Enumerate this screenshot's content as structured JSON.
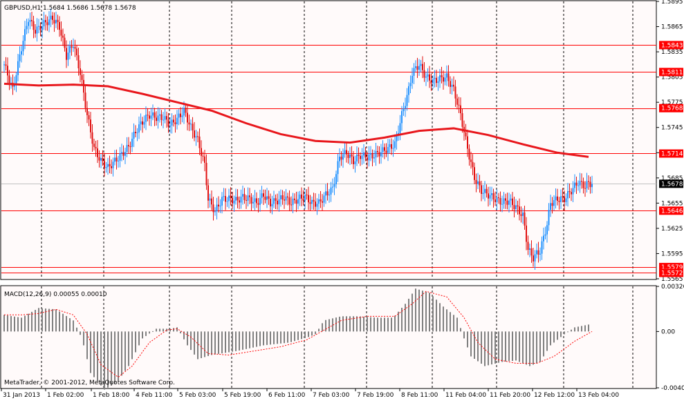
{
  "symbol_header": "GBPUSD,H1  1.5684 1.5686 1.5678 1.5678",
  "macd_header": "MACD(12,26,9) 0.00055 0.00010",
  "copyright": "MetaTrader, © 2001-2012, MetaQuotes Software Corp.",
  "colors": {
    "background": "#fffafa",
    "bull": "#1e90ff",
    "bear": "#e01010",
    "hline": "#ff0000",
    "ma": "#e8171c",
    "macd_hist": "#808080",
    "signal": "#ff0000",
    "grid": "#000000",
    "label_box": "#ff0000",
    "current_box": "#000000"
  },
  "chart_data": [
    {
      "type": "candlestick",
      "title": "GBPUSD,H1",
      "ylim": [
        1.5565,
        1.5895
      ],
      "y_ticks": [
        "1.5895",
        "1.5865",
        "1.5835",
        "1.5805",
        "1.5775",
        "1.5745",
        "1.5715",
        "1.5685",
        "1.5655",
        "1.5625",
        "1.5595",
        "1.5565"
      ],
      "x_ticks": [
        "31 Jan 2013",
        "1 Feb 02:00",
        "1 Feb 18:00",
        "4 Feb 11:00",
        "5 Feb 03:00",
        "5 Feb 19:00",
        "6 Feb 11:00",
        "7 Feb 03:00",
        "7 Feb 19:00",
        "8 Feb 11:00",
        "11 Feb 04:00",
        "11 Feb 20:00",
        "12 Feb 12:00",
        "13 Feb 04:00"
      ],
      "horizontal_levels": [
        "1.5843",
        "1.5811",
        "1.5768",
        "1.5714",
        "1.5646",
        "1.5579",
        "1.5572"
      ],
      "current_price": "1.5678",
      "moving_average_path": [
        [
          0,
          1.5797
        ],
        [
          20,
          1.5795
        ],
        [
          40,
          1.5796
        ],
        [
          60,
          1.5794
        ],
        [
          80,
          1.5785
        ],
        [
          100,
          1.5775
        ],
        [
          120,
          1.5765
        ],
        [
          140,
          1.575
        ],
        [
          160,
          1.5737
        ],
        [
          180,
          1.5729
        ],
        [
          200,
          1.5727
        ],
        [
          220,
          1.5733
        ],
        [
          240,
          1.5741
        ],
        [
          260,
          1.5744
        ],
        [
          280,
          1.5736
        ],
        [
          300,
          1.5725
        ],
        [
          320,
          1.5715
        ],
        [
          338,
          1.571
        ]
      ],
      "price_path": [
        [
          0,
          1.582
        ],
        [
          5,
          1.579
        ],
        [
          10,
          1.584
        ],
        [
          14,
          1.5875
        ],
        [
          18,
          1.586
        ],
        [
          24,
          1.587
        ],
        [
          28,
          1.5875
        ],
        [
          32,
          1.5865
        ],
        [
          36,
          1.583
        ],
        [
          40,
          1.5845
        ],
        [
          44,
          1.581
        ],
        [
          48,
          1.576
        ],
        [
          52,
          1.572
        ],
        [
          56,
          1.5705
        ],
        [
          60,
          1.5697
        ],
        [
          64,
          1.5705
        ],
        [
          68,
          1.5713
        ],
        [
          72,
          1.5722
        ],
        [
          76,
          1.574
        ],
        [
          80,
          1.5752
        ],
        [
          84,
          1.576
        ],
        [
          88,
          1.5757
        ],
        [
          92,
          1.5757
        ],
        [
          96,
          1.5748
        ],
        [
          100,
          1.5755
        ],
        [
          104,
          1.5765
        ],
        [
          108,
          1.5745
        ],
        [
          112,
          1.573
        ],
        [
          116,
          1.57
        ],
        [
          118,
          1.566
        ],
        [
          122,
          1.5645
        ],
        [
          126,
          1.566
        ],
        [
          130,
          1.566
        ],
        [
          134,
          1.5658
        ],
        [
          138,
          1.5662
        ],
        [
          142,
          1.566
        ],
        [
          146,
          1.5655
        ],
        [
          150,
          1.5665
        ],
        [
          154,
          1.5655
        ],
        [
          158,
          1.5658
        ],
        [
          162,
          1.5662
        ],
        [
          166,
          1.5655
        ],
        [
          170,
          1.566
        ],
        [
          174,
          1.5663
        ],
        [
          178,
          1.5655
        ],
        [
          182,
          1.5655
        ],
        [
          186,
          1.5665
        ],
        [
          190,
          1.5672
        ],
        [
          194,
          1.571
        ],
        [
          198,
          1.5715
        ],
        [
          202,
          1.5705
        ],
        [
          206,
          1.5712
        ],
        [
          210,
          1.571
        ],
        [
          214,
          1.5712
        ],
        [
          218,
          1.5716
        ],
        [
          222,
          1.572
        ],
        [
          226,
          1.5725
        ],
        [
          230,
          1.576
        ],
        [
          234,
          1.579
        ],
        [
          236,
          1.581
        ],
        [
          240,
          1.582
        ],
        [
          244,
          1.5805
        ],
        [
          248,
          1.58
        ],
        [
          252,
          1.5803
        ],
        [
          256,
          1.5805
        ],
        [
          260,
          1.579
        ],
        [
          264,
          1.576
        ],
        [
          268,
          1.572
        ],
        [
          272,
          1.5685
        ],
        [
          276,
          1.567
        ],
        [
          280,
          1.5665
        ],
        [
          284,
          1.566
        ],
        [
          288,
          1.5656
        ],
        [
          292,
          1.5658
        ],
        [
          296,
          1.565
        ],
        [
          300,
          1.564
        ],
        [
          303,
          1.56
        ],
        [
          306,
          1.559
        ],
        [
          308,
          1.5595
        ],
        [
          310,
          1.5598
        ],
        [
          314,
          1.563
        ],
        [
          316,
          1.5655
        ],
        [
          320,
          1.566
        ],
        [
          324,
          1.566
        ],
        [
          328,
          1.567
        ],
        [
          332,
          1.568
        ],
        [
          336,
          1.5675
        ],
        [
          338,
          1.5679
        ],
        [
          340,
          1.5678
        ]
      ]
    },
    {
      "type": "bar",
      "title": "MACD(12,26,9)",
      "ylim": [
        -0.00407,
        0.00326
      ],
      "y_ticks": [
        "0.00326",
        "0.00",
        "-0.00407"
      ],
      "histogram_path": [
        [
          0,
          0.0012
        ],
        [
          10,
          0.001
        ],
        [
          20,
          0.0017
        ],
        [
          30,
          0.0016
        ],
        [
          40,
          0.0008
        ],
        [
          45,
          -0.0005
        ],
        [
          50,
          -0.003
        ],
        [
          58,
          -0.0042
        ],
        [
          65,
          -0.0037
        ],
        [
          72,
          -0.0025
        ],
        [
          80,
          -0.0005
        ],
        [
          88,
          0.0002
        ],
        [
          96,
          0.0002
        ],
        [
          100,
          0.0003
        ],
        [
          106,
          -0.001
        ],
        [
          112,
          -0.002
        ],
        [
          120,
          -0.0017
        ],
        [
          135,
          -0.0014
        ],
        [
          150,
          -0.001
        ],
        [
          165,
          -0.0008
        ],
        [
          176,
          -0.0004
        ],
        [
          180,
          -0.0002
        ],
        [
          185,
          0.0008
        ],
        [
          195,
          0.0011
        ],
        [
          205,
          0.0011
        ],
        [
          215,
          0.001
        ],
        [
          225,
          0.001
        ],
        [
          232,
          0.002
        ],
        [
          238,
          0.0031
        ],
        [
          246,
          0.0028
        ],
        [
          254,
          0.0018
        ],
        [
          262,
          0.001
        ],
        [
          266,
          -0.0005
        ],
        [
          270,
          -0.0018
        ],
        [
          278,
          -0.0025
        ],
        [
          288,
          -0.0022
        ],
        [
          296,
          -0.0021
        ],
        [
          304,
          -0.0025
        ],
        [
          310,
          -0.0022
        ],
        [
          316,
          -0.001
        ],
        [
          324,
          -0.0002
        ],
        [
          330,
          0.0003
        ],
        [
          338,
          0.0005
        ]
      ],
      "signal_path": [
        [
          0,
          0.0012
        ],
        [
          10,
          0.0012
        ],
        [
          20,
          0.0013
        ],
        [
          30,
          0.0016
        ],
        [
          40,
          0.0012
        ],
        [
          48,
          -0.0002
        ],
        [
          56,
          -0.0024
        ],
        [
          66,
          -0.0033
        ],
        [
          74,
          -0.0025
        ],
        [
          84,
          -0.0008
        ],
        [
          94,
          0.0001
        ],
        [
          100,
          0.0002
        ],
        [
          108,
          -0.0004
        ],
        [
          118,
          -0.0016
        ],
        [
          130,
          -0.0017
        ],
        [
          145,
          -0.0014
        ],
        [
          160,
          -0.0011
        ],
        [
          175,
          -0.0006
        ],
        [
          185,
          0.0001
        ],
        [
          195,
          0.0008
        ],
        [
          210,
          0.0011
        ],
        [
          226,
          0.0011
        ],
        [
          236,
          0.002
        ],
        [
          244,
          0.0029
        ],
        [
          256,
          0.0025
        ],
        [
          266,
          0.001
        ],
        [
          274,
          -0.0008
        ],
        [
          284,
          -0.002
        ],
        [
          296,
          -0.0023
        ],
        [
          308,
          -0.0023
        ],
        [
          318,
          -0.0018
        ],
        [
          330,
          -0.0007
        ],
        [
          340,
          0.0
        ]
      ]
    }
  ]
}
